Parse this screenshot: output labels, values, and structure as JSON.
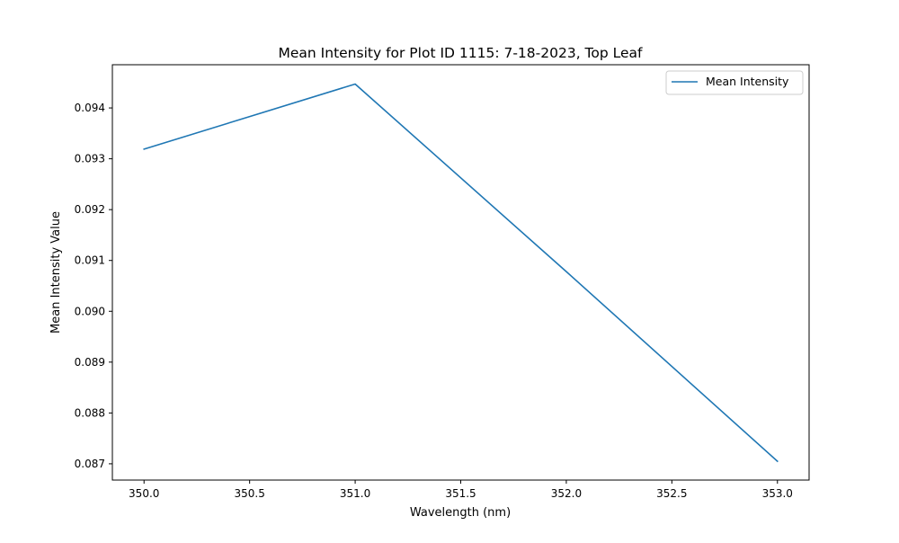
{
  "chart_data": {
    "type": "line",
    "title": "Mean Intensity for Plot ID 1115: 7-18-2023, Top Leaf",
    "xlabel": "Wavelength (nm)",
    "ylabel": "Mean Intensity Value",
    "x": [
      350.0,
      351.0,
      352.0,
      353.0
    ],
    "series": [
      {
        "name": "Mean Intensity",
        "color": "#1f77b4",
        "values": [
          0.09319,
          0.09447,
          0.09078,
          0.08705
        ]
      }
    ],
    "xlim": [
      349.85,
      353.15
    ],
    "ylim": [
      0.08668,
      0.09485
    ],
    "xticks": [
      "350.0",
      "350.5",
      "351.0",
      "351.5",
      "352.0",
      "352.5",
      "353.0"
    ],
    "yticks": [
      "0.087",
      "0.088",
      "0.089",
      "0.090",
      "0.091",
      "0.092",
      "0.093",
      "0.094"
    ],
    "grid": false,
    "legend_position": "top-right"
  }
}
